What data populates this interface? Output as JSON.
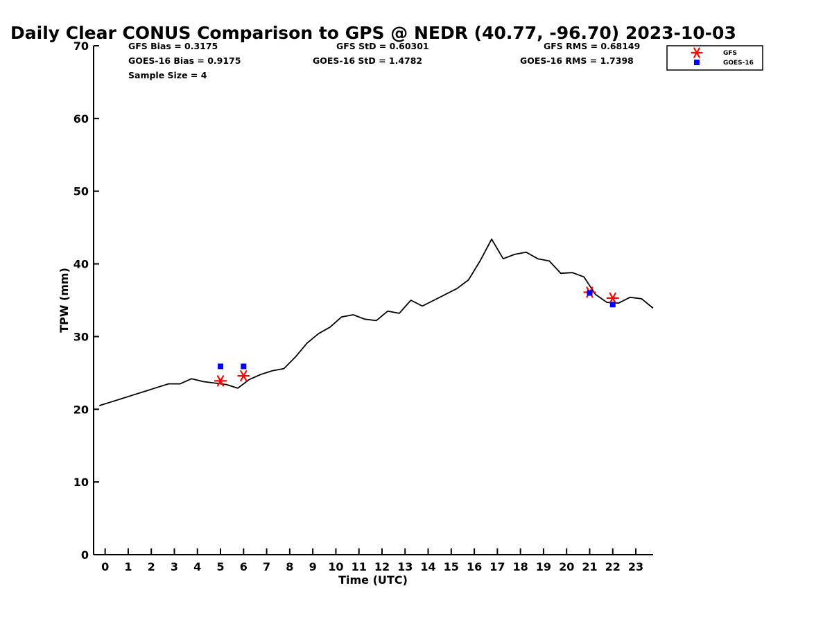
{
  "chart_data": {
    "type": "line",
    "title": "Daily Clear CONUS Comparison to GPS @ NEDR (40.77, -96.70) 2023-10-03",
    "xlabel": "Time (UTC)",
    "ylabel": "TPW (mm)",
    "xlim": [
      -0.5,
      23.75
    ],
    "ylim": [
      0,
      70
    ],
    "xticks": [
      0,
      1,
      2,
      3,
      4,
      5,
      6,
      7,
      8,
      9,
      10,
      11,
      12,
      13,
      14,
      15,
      16,
      17,
      18,
      19,
      20,
      21,
      22,
      23
    ],
    "yticks": [
      0,
      10,
      20,
      30,
      40,
      50,
      60,
      70
    ],
    "grid": false,
    "legend_position": "top-right",
    "stats": {
      "gfs_bias": "GFS Bias = 0.3175",
      "gfs_std": "GFS StD = 0.60301",
      "gfs_rms": "GFS RMS = 0.68149",
      "goes_bias": "GOES-16 Bias = 0.9175",
      "goes_std": "GOES-16 StD = 1.4782",
      "goes_rms": "GOES-16 RMS = 1.7398",
      "sample_size": "Sample Size = 4"
    },
    "legend": {
      "gfs": "GFS",
      "goes": "GOES-16"
    },
    "series": [
      {
        "kind": "gps-line",
        "color": "#000000",
        "x": [
          -0.25,
          0.25,
          0.75,
          1.25,
          1.75,
          2.25,
          2.75,
          3.25,
          3.75,
          4.25,
          4.75,
          5.25,
          5.75,
          6.25,
          6.75,
          7.25,
          7.75,
          8.25,
          8.75,
          9.25,
          9.75,
          10.25,
          10.75,
          11.25,
          11.75,
          12.25,
          12.75,
          13.25,
          13.75,
          14.25,
          14.75,
          15.25,
          15.75,
          16.25,
          16.75,
          17.25,
          17.75,
          18.25,
          18.75,
          19.25,
          19.75,
          20.25,
          20.75,
          21.25,
          21.75,
          22.25,
          22.75,
          23.25,
          23.75
        ],
        "y": [
          20.5,
          21.0,
          21.5,
          22.0,
          22.5,
          23.0,
          23.5,
          23.5,
          24.2,
          23.8,
          23.6,
          23.4,
          22.9,
          24.1,
          24.8,
          25.3,
          25.6,
          27.2,
          29.1,
          30.4,
          31.3,
          32.7,
          33.0,
          32.4,
          32.2,
          33.5,
          33.2,
          35.0,
          34.2,
          35.0,
          35.8,
          36.6,
          37.8,
          40.4,
          43.4,
          40.7,
          41.3,
          41.6,
          40.7,
          40.4,
          38.7,
          38.8,
          38.2,
          35.8,
          34.7,
          34.6,
          35.4,
          35.2,
          33.9
        ]
      },
      {
        "name": "GFS",
        "kind": "asterisk",
        "color": "#ff0000",
        "x": [
          5,
          6,
          21,
          22
        ],
        "y": [
          23.9,
          24.6,
          36.1,
          35.3
        ]
      },
      {
        "name": "GOES-16",
        "kind": "square",
        "color": "#0000ff",
        "x": [
          5,
          6,
          21,
          22
        ],
        "y": [
          25.9,
          25.9,
          36.0,
          34.4
        ]
      }
    ]
  }
}
